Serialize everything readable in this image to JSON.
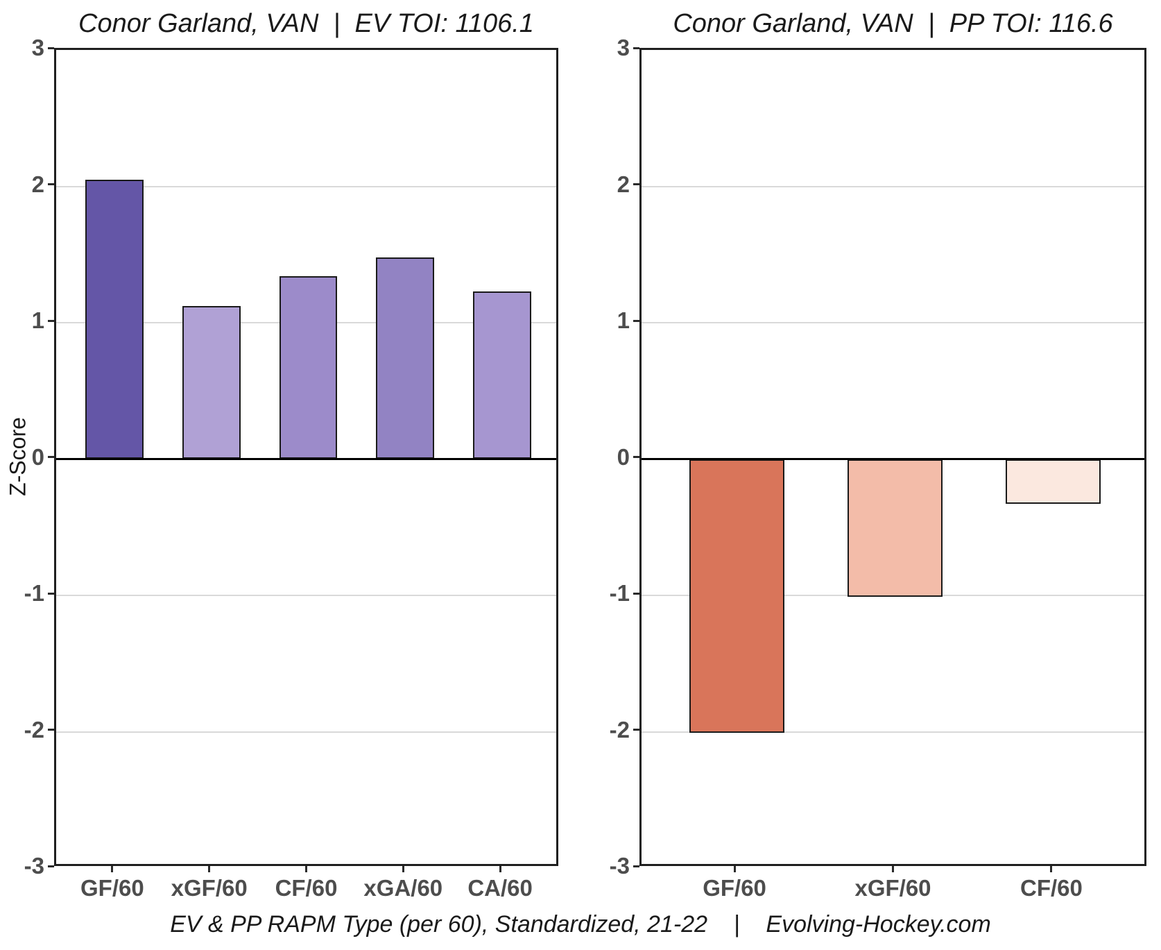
{
  "figure": {
    "background": "#FFFFFF",
    "y_axis_title": "Z-Score",
    "caption": "EV & PP RAPM Type (per 60), Standardized, 21-22    |    Evolving-Hockey.com"
  },
  "colors": {
    "grid": "#D9D9D9",
    "zero_line": "#000000",
    "panel_border": "#1F1F1F",
    "bar_border": "#1A1A1A",
    "axis_text": "#4D4D4D",
    "title_text": "#1A1A1A"
  },
  "chart_data": [
    {
      "type": "bar",
      "title": "Conor Garland, VAN  |  EV TOI: 1106.1",
      "categories": [
        "GF/60",
        "xGF/60",
        "CF/60",
        "xGA/60",
        "CA/60"
      ],
      "values": [
        2.05,
        1.12,
        1.34,
        1.48,
        1.23
      ],
      "bar_colors": [
        "#6456A7",
        "#B0A1D5",
        "#9C8BCA",
        "#9283C3",
        "#A696D0"
      ],
      "xlabel": "",
      "ylabel": "Z-Score",
      "ylim": [
        -3,
        3
      ],
      "yticks": [
        3,
        2,
        1,
        0,
        -1,
        -2,
        -3
      ],
      "grid": "horizontal-major",
      "legend": "none"
    },
    {
      "type": "bar",
      "title": "Conor Garland, VAN  |  PP TOI: 116.6",
      "categories": [
        "GF/60",
        "xGF/60",
        "CF/60"
      ],
      "values": [
        -2.01,
        -1.01,
        -0.33
      ],
      "bar_colors": [
        "#D9755A",
        "#F3BCA9",
        "#FBE8DF"
      ],
      "xlabel": "",
      "ylabel": "",
      "ylim": [
        -3,
        3
      ],
      "yticks": [
        3,
        2,
        1,
        0,
        -1,
        -2,
        -3
      ],
      "grid": "horizontal-major",
      "legend": "none"
    }
  ]
}
